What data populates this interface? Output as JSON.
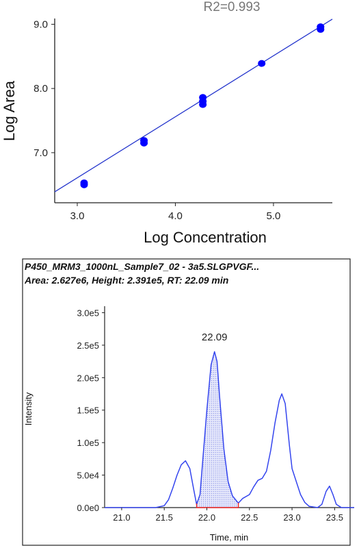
{
  "chart_data": [
    {
      "type": "scatter",
      "title": "",
      "annotation": "R2=0.993",
      "xlabel": "Log Concentration",
      "ylabel": "Log Area",
      "xlim": [
        2.77,
        5.6
      ],
      "ylim": [
        6.22,
        9.09
      ],
      "xticks": [
        "3.0",
        "4.0",
        "5.0"
      ],
      "yticks": [
        "7.0",
        "8.0",
        "9.0"
      ],
      "grid": false,
      "points": [
        {
          "x": 3.07,
          "y": 6.5
        },
        {
          "x": 3.07,
          "y": 6.53
        },
        {
          "x": 3.68,
          "y": 7.15
        },
        {
          "x": 3.68,
          "y": 7.19
        },
        {
          "x": 4.28,
          "y": 7.75
        },
        {
          "x": 4.28,
          "y": 7.8
        },
        {
          "x": 4.28,
          "y": 7.86
        },
        {
          "x": 4.88,
          "y": 8.39
        },
        {
          "x": 5.48,
          "y": 8.92
        },
        {
          "x": 5.48,
          "y": 8.96
        }
      ],
      "fit_line": {
        "x": [
          2.77,
          5.6
        ],
        "y": [
          6.39,
          9.08
        ]
      },
      "colors": {
        "points": "#0000ff",
        "line": "#2233cc"
      }
    },
    {
      "type": "line",
      "header_line1": "P450_MRM3_1000nL_Sample7_02 - 3a5.SLGPVGF...",
      "header_line2": "Area: 2.627e6, Height: 2.391e5, RT: 22.09 min",
      "xlabel": "Time, min",
      "ylabel": "Intensity",
      "xlim": [
        20.8,
        23.73
      ],
      "ylim": [
        0,
        310000
      ],
      "xticks": [
        "21.0",
        "21.5",
        "22.0",
        "22.5",
        "23.0",
        "23.5"
      ],
      "yticks": [
        "0.0e0",
        "5.0e4",
        "1.0e5",
        "1.5e5",
        "2.0e5",
        "2.5e5",
        "3.0e5"
      ],
      "peak_label": "22.09",
      "peak_label_x": 22.09,
      "integration": {
        "start": 21.88,
        "end": 22.37
      },
      "trace": [
        [
          20.8,
          0
        ],
        [
          21.3,
          0
        ],
        [
          21.4,
          0
        ],
        [
          21.5,
          3000
        ],
        [
          21.55,
          12000
        ],
        [
          21.6,
          30000
        ],
        [
          21.65,
          50000
        ],
        [
          21.7,
          66000
        ],
        [
          21.75,
          72000
        ],
        [
          21.8,
          60000
        ],
        [
          21.85,
          25000
        ],
        [
          21.88,
          5000
        ],
        [
          21.92,
          20000
        ],
        [
          21.95,
          70000
        ],
        [
          22.0,
          150000
        ],
        [
          22.05,
          220000
        ],
        [
          22.09,
          240000
        ],
        [
          22.12,
          225000
        ],
        [
          22.15,
          170000
        ],
        [
          22.2,
          90000
        ],
        [
          22.25,
          40000
        ],
        [
          22.3,
          18000
        ],
        [
          22.35,
          10000
        ],
        [
          22.37,
          7000
        ],
        [
          22.42,
          14000
        ],
        [
          22.5,
          20000
        ],
        [
          22.55,
          32000
        ],
        [
          22.6,
          42000
        ],
        [
          22.65,
          45000
        ],
        [
          22.7,
          56000
        ],
        [
          22.75,
          88000
        ],
        [
          22.8,
          130000
        ],
        [
          22.85,
          165000
        ],
        [
          22.88,
          175000
        ],
        [
          22.92,
          160000
        ],
        [
          22.97,
          95000
        ],
        [
          23.0,
          60000
        ],
        [
          23.05,
          40000
        ],
        [
          23.1,
          20000
        ],
        [
          23.15,
          8000
        ],
        [
          23.2,
          2000
        ],
        [
          23.3,
          0
        ],
        [
          23.35,
          5000
        ],
        [
          23.4,
          25000
        ],
        [
          23.44,
          33000
        ],
        [
          23.48,
          20000
        ],
        [
          23.52,
          5000
        ],
        [
          23.58,
          0
        ],
        [
          23.73,
          0
        ]
      ],
      "colors": {
        "trace": "#3344ee",
        "fill": "#8f97e8",
        "baseline": "#ee2222"
      }
    }
  ]
}
